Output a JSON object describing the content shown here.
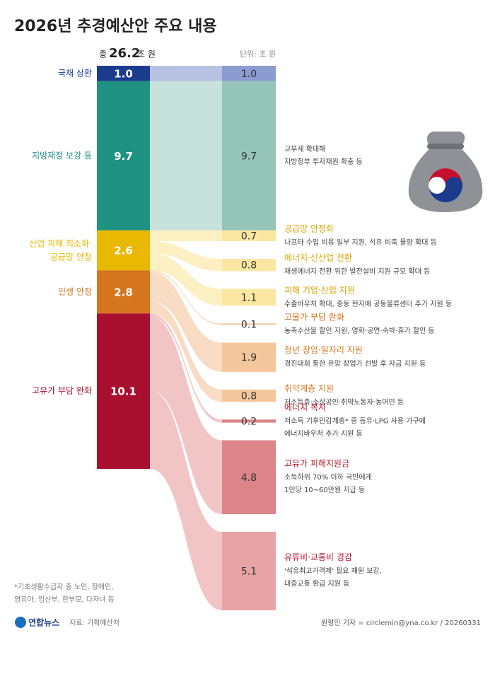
{
  "chart_data": {
    "type": "sankey",
    "title": "2026년 추경예산안 주요 내용",
    "total_prefix": "총",
    "total": 26.2,
    "total_unit": "조 원",
    "unit_label": "단위: 조 원",
    "sources": [
      {
        "name": "국채 상환",
        "value": 1,
        "value_label": "1.0",
        "color": "#1b3c8c",
        "flow_color": "#b9c1e2",
        "targets": [
          {
            "value": 1,
            "value_label": "1.0",
            "title": null,
            "description": null,
            "color": "#8c9bd2"
          }
        ]
      },
      {
        "name": "지방재정 보강 등",
        "value": 9.7,
        "value_label": "9.7",
        "color": "#1f9282",
        "flow_color": "#c7e2db",
        "targets": [
          {
            "value": 9.7,
            "value_label": "9.7",
            "title": null,
            "description": "교부세 확대해\n지방정부 투자재원 확충 등",
            "color": "#95c4b9"
          }
        ]
      },
      {
        "name": "산업 피해 최소화·\n공급망 안정",
        "value": 2.6,
        "value_label": "2.6",
        "color": "#e9b800",
        "flow_color": "#fcefc2",
        "targets": [
          {
            "value": 0.7,
            "value_label": "0.7",
            "title": "공급망 안정화",
            "description": "나프타 수입 비용 일부 지원, 석유 비축 물량 확대 등",
            "color": "#fbe7a2"
          },
          {
            "value": 0.8,
            "value_label": "0.8",
            "title": "에너지·신산업 전환",
            "description": "재생에너지 전환 위한 발전설비 지원 규모 확대 등",
            "color": "#fbe7a2"
          },
          {
            "value": 1.1,
            "value_label": "1.1",
            "title": "피해 기업·산업 지원",
            "description": "수출바우처 확대, 중동 현지에 공동물류센터 추가 지원 등",
            "color": "#fbe7a2"
          }
        ]
      },
      {
        "name": "민생 안정",
        "value": 2.8,
        "value_label": "2.8",
        "color": "#d5751d",
        "flow_color": "#f8dcc3",
        "targets": [
          {
            "value": 0.1,
            "value_label": "0.1",
            "title": "고물가 부담 완화",
            "description": "농축수산물 할인 지원, 영화·공연·숙박·휴가 할인 등",
            "color": "#f3c79b"
          },
          {
            "value": 1.9,
            "value_label": "1.9",
            "title": "청년 창업·일자리 지원",
            "description": "경진대회 통한 유망 창업가 선발 후 자금 지원 등",
            "color": "#f3c79b"
          },
          {
            "value": 0.8,
            "value_label": "0.8",
            "title": "취약계층 지원",
            "description": "저소득층·소상공인·취약노동자·농어민 등",
            "color": "#f3c79b"
          }
        ]
      },
      {
        "name": "고유가 부담 완화",
        "value": 10.1,
        "value_label": "10.1",
        "color": "#a9102f",
        "flow_color": "#f1c5c6",
        "targets": [
          {
            "value": 0.2,
            "value_label": "0.2",
            "title": "에너지 복지",
            "description": "저소득 기후민감계층* 중 등유·LPG 사용 가구에\n에너지바우처 추가 지원 등",
            "color": "#dc8489"
          },
          {
            "value": 4.8,
            "value_label": "4.8",
            "title": "고유가 피해지원금",
            "description": "소득하위 70% 이하 국민에게\n1인당 10~60만원 지급 등",
            "color": "#dc8489"
          },
          {
            "value": 5.1,
            "value_label": "5.1",
            "title": "유류비·교통비 경감",
            "description": "'석유최고가격제' 필요 재원 보강,\n대중교통 환급 지원 등",
            "color": "#e8a3a6"
          }
        ]
      }
    ],
    "footnote": "*기초생활수급자 중 노인, 장애인,\n영유아, 임산부, 한부모, 다자녀 등",
    "logo": "연합뉴스",
    "source_note": "자료: 기획예산처",
    "credit": "원형민 기자 = circlemin@yna.co.kr / 20260331"
  }
}
